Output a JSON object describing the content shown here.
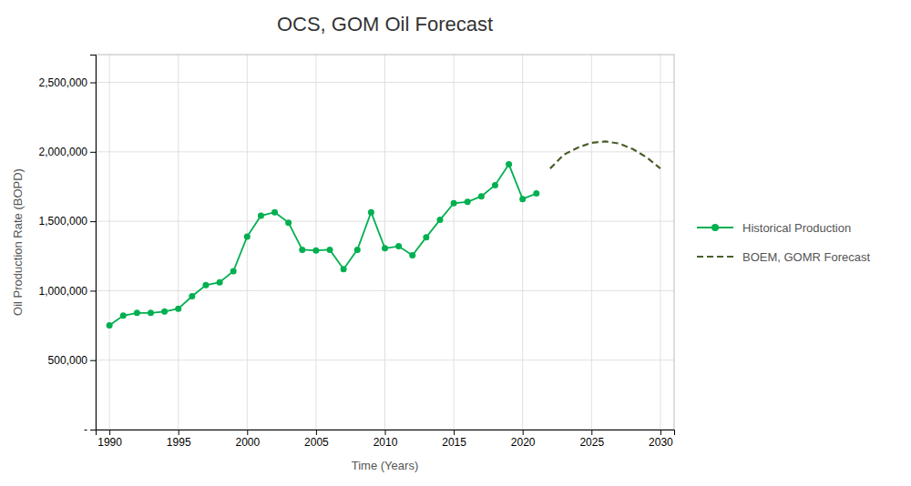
{
  "chart_data": {
    "type": "line",
    "title": "OCS, GOM Oil Forecast",
    "xlabel": "Time (Years)",
    "ylabel": "Oil Production Rate (BOPD)",
    "series": [
      {
        "name": "Historical Production",
        "color": "#00b050",
        "marker": "circle",
        "line_style": "solid",
        "x": [
          1990,
          1991,
          1992,
          1993,
          1994,
          1995,
          1996,
          1997,
          1998,
          1999,
          2000,
          2001,
          2002,
          2003,
          2004,
          2005,
          2006,
          2007,
          2008,
          2009,
          2010,
          2011,
          2012,
          2013,
          2014,
          2015,
          2016,
          2017,
          2018,
          2019,
          2020,
          2021
        ],
        "values": [
          750000,
          820000,
          840000,
          840000,
          850000,
          870000,
          960000,
          1040000,
          1060000,
          1140000,
          1390000,
          1540000,
          1565000,
          1490000,
          1295000,
          1290000,
          1295000,
          1155000,
          1295000,
          1565000,
          1305000,
          1320000,
          1255000,
          1385000,
          1510000,
          1630000,
          1640000,
          1680000,
          1760000,
          1910000,
          1660000,
          1700000
        ]
      },
      {
        "name": "BOEM, GOMR Forecast",
        "color": "#4a5e2a",
        "line_style": "dashed",
        "x": [
          2022,
          2023,
          2024,
          2025,
          2026,
          2027,
          2028,
          2029,
          2030
        ],
        "values": [
          1880000,
          1980000,
          2030000,
          2065000,
          2075000,
          2060000,
          2020000,
          1960000,
          1880000
        ]
      }
    ],
    "xlim": [
      1989,
      2031
    ],
    "ylim": [
      0,
      2700000
    ],
    "xticks": [
      1990,
      1995,
      2000,
      2005,
      2010,
      2015,
      2020,
      2025,
      2030
    ],
    "yticks": [
      {
        "value": 0,
        "label": "-"
      },
      {
        "value": 500000,
        "label": "500,000"
      },
      {
        "value": 1000000,
        "label": "1,000,000"
      },
      {
        "value": 1500000,
        "label": "1,500,000"
      },
      {
        "value": 2000000,
        "label": "2,000,000"
      },
      {
        "value": 2500000,
        "label": "2,500,000"
      }
    ],
    "grid": true,
    "legend": "right"
  }
}
